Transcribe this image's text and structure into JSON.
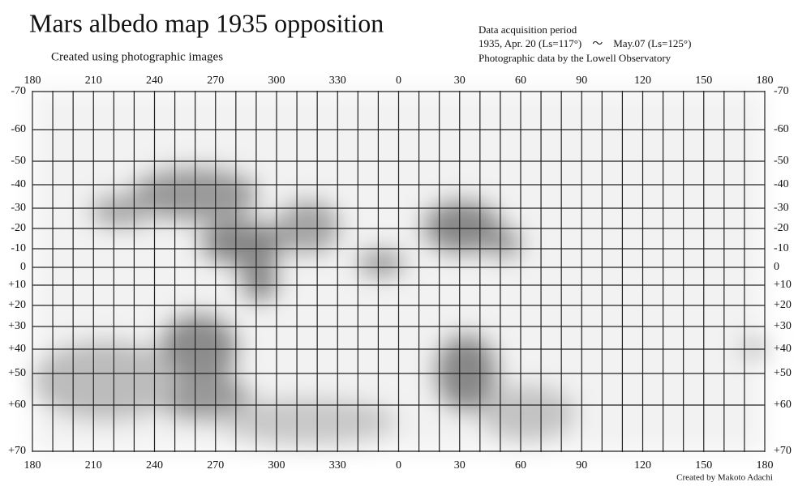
{
  "header": {
    "title": "Mars albedo map 1935 opposition",
    "subtitle": "Created using photographic images",
    "info": [
      "Data acquisition period",
      "1935, Apr. 20 (Ls=117°)　～　May.07 (Ls=125°)",
      "Photographic data by the Lowell Observatory"
    ]
  },
  "map": {
    "longitude_labels": [
      "180",
      "210",
      "240",
      "270",
      "300",
      "330",
      "0",
      "30",
      "60",
      "90",
      "120",
      "150",
      "180"
    ],
    "latitude_labels": [
      "-70",
      "-60",
      "-50",
      "-40",
      "-30",
      "-20",
      "-10",
      "0",
      "+10",
      "+20",
      "+30",
      "+40",
      "+50",
      "+60",
      "+70"
    ]
  },
  "footer": {
    "credit": "Created by Makoto Adachi"
  }
}
